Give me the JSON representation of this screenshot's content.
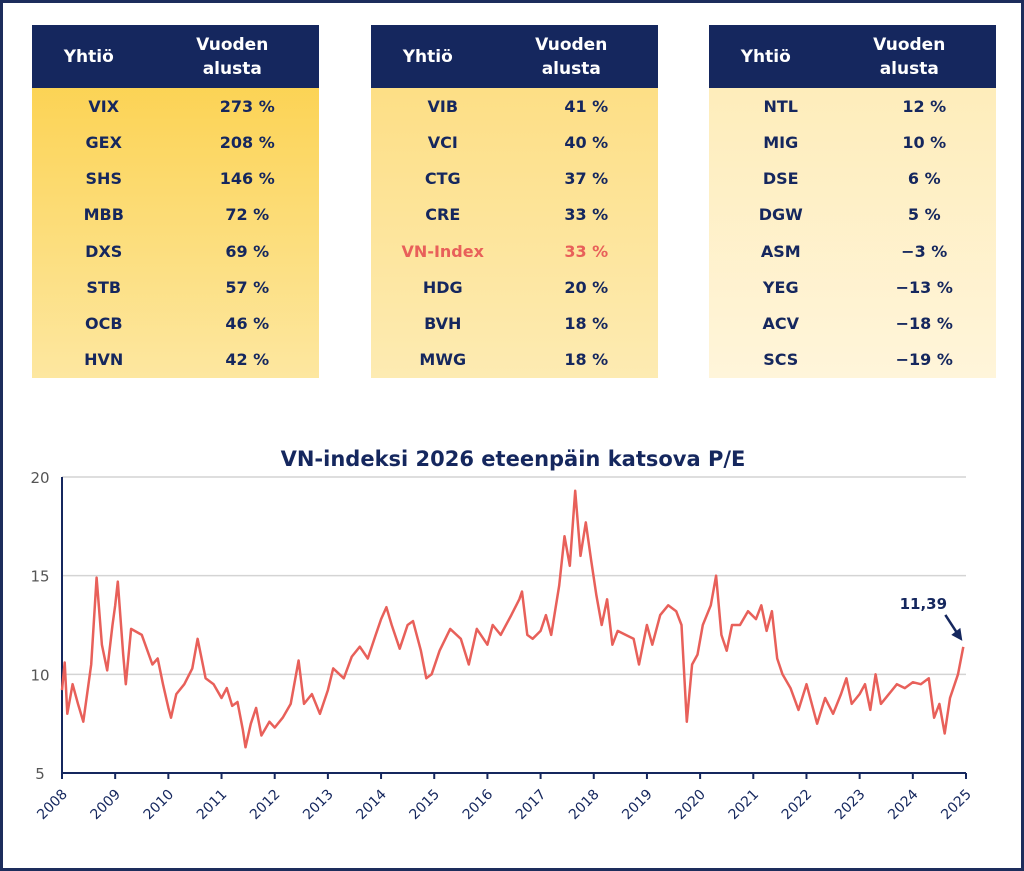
{
  "tables": [
    {
      "columns": [
        "Yhtiö",
        "Vuoden alusta"
      ],
      "rows": [
        [
          "VIX",
          "273 %"
        ],
        [
          "GEX",
          "208 %"
        ],
        [
          "SHS",
          "146 %"
        ],
        [
          "MBB",
          "72 %"
        ],
        [
          "DXS",
          "69 %"
        ],
        [
          "STB",
          "57 %"
        ],
        [
          "OCB",
          "46 %"
        ],
        [
          "HVN",
          "42 %"
        ]
      ],
      "background": [
        "#fbcf45",
        "#fde7a0"
      ]
    },
    {
      "columns": [
        "Yhtiö",
        "Vuoden alusta"
      ],
      "rows": [
        [
          "VIB",
          "41 %"
        ],
        [
          "VCI",
          "40 %"
        ],
        [
          "CTG",
          "37 %"
        ],
        [
          "CRE",
          "33 %"
        ],
        [
          "VN-Index",
          "33 %"
        ],
        [
          "HDG",
          "20 %"
        ],
        [
          "BVH",
          "18 %"
        ],
        [
          "MWG",
          "18 %"
        ]
      ],
      "background": [
        "#fddc7c",
        "#fdebb2"
      ],
      "highlight_row": 4,
      "highlight_color": "#e8605a"
    },
    {
      "columns": [
        "Yhtiö",
        "Vuoden alusta"
      ],
      "rows": [
        [
          "NTL",
          "12 %"
        ],
        [
          "MIG",
          "10 %"
        ],
        [
          "DSE",
          "6 %"
        ],
        [
          "DGW",
          "5 %"
        ],
        [
          "ASM",
          "−3 %"
        ],
        [
          "YEG",
          "−13 %"
        ],
        [
          "ACV",
          "−18 %"
        ],
        [
          "SCS",
          "−19 %"
        ]
      ],
      "background": [
        "#feebb4",
        "#fff5da"
      ]
    }
  ],
  "chart_data": {
    "type": "line",
    "title": "VN-indeksi 2026 eteenpäin katsova P/E",
    "x": [
      2008.0,
      2008.05,
      2008.1,
      2008.2,
      2008.3,
      2008.4,
      2008.55,
      2008.65,
      2008.75,
      2008.85,
      2008.95,
      2009.0,
      2009.05,
      2009.15,
      2009.2,
      2009.3,
      2009.5,
      2009.7,
      2009.8,
      2009.9,
      2010.0,
      2010.05,
      2010.15,
      2010.3,
      2010.45,
      2010.55,
      2010.7,
      2010.85,
      2011.0,
      2011.1,
      2011.2,
      2011.3,
      2011.4,
      2011.45,
      2011.55,
      2011.65,
      2011.75,
      2011.9,
      2012.0,
      2012.15,
      2012.3,
      2012.45,
      2012.55,
      2012.7,
      2012.85,
      2013.0,
      2013.1,
      2013.3,
      2013.45,
      2013.6,
      2013.75,
      2013.9,
      2014.0,
      2014.1,
      2014.2,
      2014.35,
      2014.5,
      2014.6,
      2014.75,
      2014.85,
      2014.95,
      2015.1,
      2015.3,
      2015.5,
      2015.65,
      2015.8,
      2016.0,
      2016.1,
      2016.25,
      2016.45,
      2016.6,
      2016.65,
      2016.75,
      2016.85,
      2017.0,
      2017.1,
      2017.2,
      2017.35,
      2017.45,
      2017.55,
      2017.65,
      2017.75,
      2017.85,
      2017.95,
      2018.05,
      2018.15,
      2018.25,
      2018.35,
      2018.45,
      2018.6,
      2018.75,
      2018.85,
      2019.0,
      2019.1,
      2019.25,
      2019.4,
      2019.55,
      2019.65,
      2019.75,
      2019.85,
      2019.95,
      2020.05,
      2020.2,
      2020.3,
      2020.4,
      2020.5,
      2020.6,
      2020.75,
      2020.9,
      2021.05,
      2021.15,
      2021.25,
      2021.35,
      2021.45,
      2021.55,
      2021.7,
      2021.85,
      2022.0,
      2022.1,
      2022.2,
      2022.35,
      2022.5,
      2022.65,
      2022.75,
      2022.85,
      2023.0,
      2023.1,
      2023.2,
      2023.3,
      2023.4,
      2023.55,
      2023.7,
      2023.85,
      2024.0,
      2024.15,
      2024.3,
      2024.4,
      2024.5,
      2024.6,
      2024.7,
      2024.85,
      2024.95
    ],
    "series": [
      {
        "color": "#e8605a",
        "values": [
          9.2,
          10.6,
          8.0,
          9.5,
          8.5,
          7.6,
          10.5,
          14.9,
          11.5,
          10.2,
          12.5,
          13.5,
          14.7,
          11.0,
          9.5,
          12.3,
          12.0,
          10.5,
          10.8,
          9.5,
          8.3,
          7.8,
          9.0,
          9.5,
          10.3,
          11.8,
          9.8,
          9.5,
          8.8,
          9.3,
          8.4,
          8.6,
          7.2,
          6.3,
          7.5,
          8.3,
          6.9,
          7.6,
          7.3,
          7.8,
          8.5,
          10.7,
          8.5,
          9.0,
          8.0,
          9.2,
          10.3,
          9.8,
          10.9,
          11.4,
          10.8,
          12.0,
          12.8,
          13.4,
          12.5,
          11.3,
          12.5,
          12.7,
          11.2,
          9.8,
          10.0,
          11.2,
          12.3,
          11.8,
          10.5,
          12.3,
          11.5,
          12.5,
          12.0,
          13.0,
          13.8,
          14.2,
          12.0,
          11.8,
          12.2,
          13.0,
          12.0,
          14.5,
          17.0,
          15.5,
          19.3,
          16.0,
          17.7,
          15.8,
          14.0,
          12.5,
          13.8,
          11.5,
          12.2,
          12.0,
          11.8,
          10.5,
          12.5,
          11.5,
          13.0,
          13.5,
          13.2,
          12.5,
          7.6,
          10.5,
          11.0,
          12.5,
          13.5,
          15.0,
          12.0,
          11.2,
          12.5,
          12.5,
          13.2,
          12.8,
          13.5,
          12.2,
          13.2,
          10.8,
          10.0,
          9.3,
          8.2,
          9.5,
          8.5,
          7.5,
          8.8,
          8.0,
          9.0,
          9.8,
          8.5,
          9.0,
          9.5,
          8.2,
          10.0,
          8.5,
          9.0,
          9.5,
          9.3,
          9.6,
          9.5,
          9.8,
          7.8,
          8.5,
          7.0,
          8.8,
          10.0,
          11.39
        ]
      }
    ],
    "annotations": [
      {
        "text": "11,39"
      }
    ],
    "xlim": [
      2008,
      2025
    ],
    "xticks": [
      2008,
      2009,
      2010,
      2011,
      2012,
      2013,
      2014,
      2015,
      2016,
      2017,
      2018,
      2019,
      2020,
      2021,
      2022,
      2023,
      2024,
      2025
    ],
    "ylim": [
      5,
      20
    ],
    "yticks": [
      5,
      10,
      15,
      20
    ],
    "grid": true
  }
}
